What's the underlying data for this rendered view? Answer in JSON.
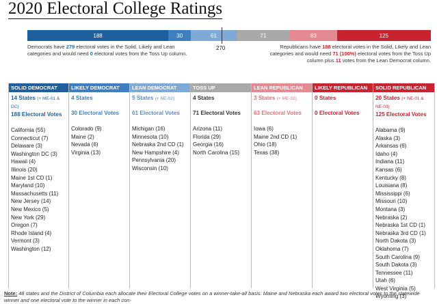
{
  "title": "2020 Electoral College Ratings",
  "bar": {
    "segments": [
      {
        "value": "188",
        "color": "#1f5f9e",
        "width": 188
      },
      {
        "value": "30",
        "color": "#3f7fc0",
        "width": 30
      },
      {
        "value": "61",
        "color": "#7fa9d6",
        "width": 61
      },
      {
        "value": "71",
        "color": "#a9a9a9",
        "width": 71
      },
      {
        "value": "63",
        "color": "#e48a92",
        "width": 63
      },
      {
        "value": "125",
        "color": "#c8242f",
        "width": 125
      }
    ],
    "threshold": "270"
  },
  "notes": {
    "dem_a": "Democrats have ",
    "dem_b": "279",
    "dem_c": " electoral votes in the Solid, Likely and Lean categories and would need ",
    "dem_d": "0",
    "dem_e": " electoral votes from the Toss Up column.",
    "rep_a": "Republicans have ",
    "rep_b": "188",
    "rep_c": " electoral votes in the Solid, Likely and Lean categories and would need ",
    "rep_d": "71 (100%)",
    "rep_e": " electoral votes from the Toss Up column plus ",
    "rep_f": "11",
    "rep_g": " votes from the Lean Democrat column."
  },
  "columns": [
    {
      "header": "SOLID DEMOCRAT",
      "color": "#1f5f9e",
      "text_color": "#1f5f9e",
      "states": "14 States",
      "states_note": "(+ ME-01 & DC)",
      "ev": "188 Electoral Votes",
      "list": [
        "California (55)",
        "Connecticut (7)",
        "Delaware (3)",
        "Washington DC (3)",
        "Hawaii (4)",
        "Illinois (20)",
        "Maine 1st CD (1)",
        "Maryland (10)",
        "Massachusetts (11)",
        "New Jersey (14)",
        "New Mexico (5)",
        "New York (29)",
        "Oregon (7)",
        "Rhode Island (4)",
        "Vermont (3)",
        "Washington (12)"
      ]
    },
    {
      "header": "LIKELY DEMOCRAT",
      "color": "#3f7fc0",
      "text_color": "#3f7fc0",
      "states": "4 States",
      "states_note": "",
      "ev": "30 Electoral Votes",
      "list": [
        "Colorado (9)",
        "Maine (2)",
        "Nevada (6)",
        "Virginia (13)"
      ]
    },
    {
      "header": "LEAN DEMOCRAT",
      "color": "#7fa9d6",
      "text_color": "#5a8cc4",
      "states": "5 States",
      "states_note": "(+ NE-02)",
      "ev": "61 Electoral Votes",
      "list": [
        "Michigan (16)",
        "Minnesota (10)",
        "Nebraska 2nd CD (1)",
        "New Hampshire (4)",
        "Pennsylvania (20)",
        "Wisconsin (10)"
      ]
    },
    {
      "header": "TOSS UP",
      "color": "#a9a9a9",
      "text_color": "#333333",
      "states": "4 States",
      "states_note": "",
      "ev": "71 Electoral Votes",
      "list": [
        "Arizona (11)",
        "Florida (29)",
        "Georgia (16)",
        "North Carolina (15)"
      ]
    },
    {
      "header": "LEAN REPUBLICAN",
      "color": "#e48a92",
      "text_color": "#e0707a",
      "states": "3 States",
      "states_note": "(+ ME-02)",
      "ev": "63 Electoral Votes",
      "list": [
        "Iowa (6)",
        "Maine 2nd CD (1)",
        "Ohio (18)",
        "Texas (38)"
      ]
    },
    {
      "header": "LIKELY REPUBLICAN",
      "color": "#c8242f",
      "text_color": "#c8242f",
      "states": "0 States",
      "states_note": "",
      "ev": "0 Electoral Votes",
      "list": []
    },
    {
      "header": "SOLID REPUBLICAN",
      "color": "#c8242f",
      "text_color": "#c8242f",
      "states": "20 States",
      "states_note": "(+ NE-01 & NE-03)",
      "ev": "125 Electoral Votes",
      "list": [
        "Alabama (9)",
        "Alaska (3)",
        "Arkansas (6)",
        "Idaho (4)",
        "Indiana (11)",
        "Kansas (6)",
        "Kentucky (8)",
        "Louisiana (8)",
        "Mississippi (6)",
        "Missouri (10)",
        "Montana (3)",
        "Nebraska (2)",
        "Nebraska 1st CD (1)",
        "Nebraska 3rd CD (1)",
        "North Dakota (3)",
        "Oklahoma (7)",
        "South Carolina (9)",
        "South Dakota (3)",
        "Tennessee (11)",
        "Utah (6)",
        "West Virginia (5)",
        "Wyoming (3)"
      ]
    }
  ],
  "footnote": {
    "label": "Note:",
    "text": " 48 states and the District of Columbia each allocate their Electoral College votes on a winner-take-all basis.  Maine and Nebraska each award two electoral votes to the statewide winner and one electoral vote to the winner in each con-"
  }
}
